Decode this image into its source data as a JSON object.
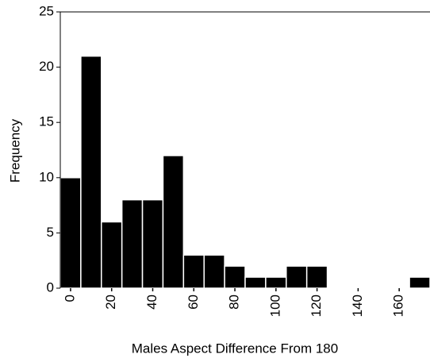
{
  "chart_data": {
    "type": "histogram",
    "xlabel": "Males Aspect Difference From 180",
    "ylabel": "Frequency",
    "bins": [
      -5,
      5,
      15,
      25,
      35,
      45,
      55,
      65,
      75,
      85,
      95,
      105,
      115,
      125,
      135,
      145,
      155,
      165,
      175
    ],
    "values": [
      10,
      21,
      6,
      8,
      8,
      12,
      3,
      3,
      2,
      1,
      1,
      2,
      2,
      0,
      0,
      0,
      0,
      1
    ],
    "color": "#000000",
    "xlim": [
      -5,
      175
    ],
    "ylim": [
      0,
      25
    ],
    "xticks": [
      0,
      20,
      40,
      60,
      80,
      100,
      120,
      140,
      160
    ],
    "yticks": [
      0,
      5,
      10,
      15,
      20,
      25
    ]
  }
}
